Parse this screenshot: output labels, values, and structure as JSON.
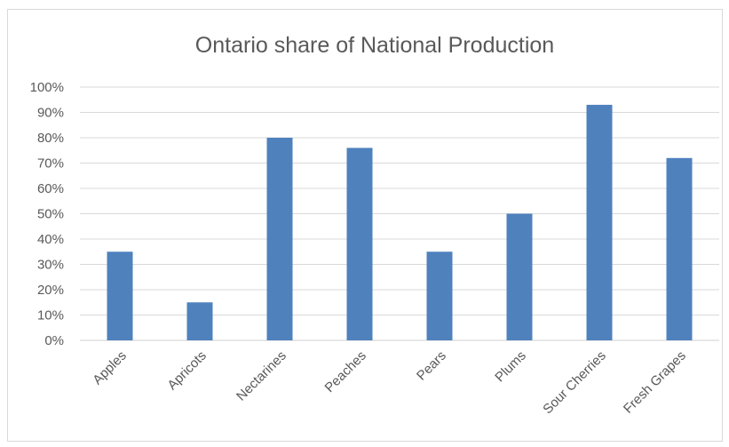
{
  "chart_data": {
    "type": "bar",
    "title": "Ontario share of National Production",
    "categories": [
      "Apples",
      "Apricots",
      "Nectarines",
      "Peaches",
      "Pears",
      "Plums",
      "Sour Cherries",
      "Fresh Grapes"
    ],
    "series": [
      {
        "values": [
          35,
          15,
          80,
          76,
          35,
          50,
          93,
          72
        ]
      }
    ],
    "y_ticks": [
      "0%",
      "10%",
      "20%",
      "30%",
      "40%",
      "50%",
      "60%",
      "70%",
      "80%",
      "90%",
      "100%"
    ],
    "ylim": [
      0,
      100
    ],
    "grid": true,
    "legend": "none",
    "bar_color": "#4f81bd",
    "grid_color": "#d9d9d9"
  }
}
